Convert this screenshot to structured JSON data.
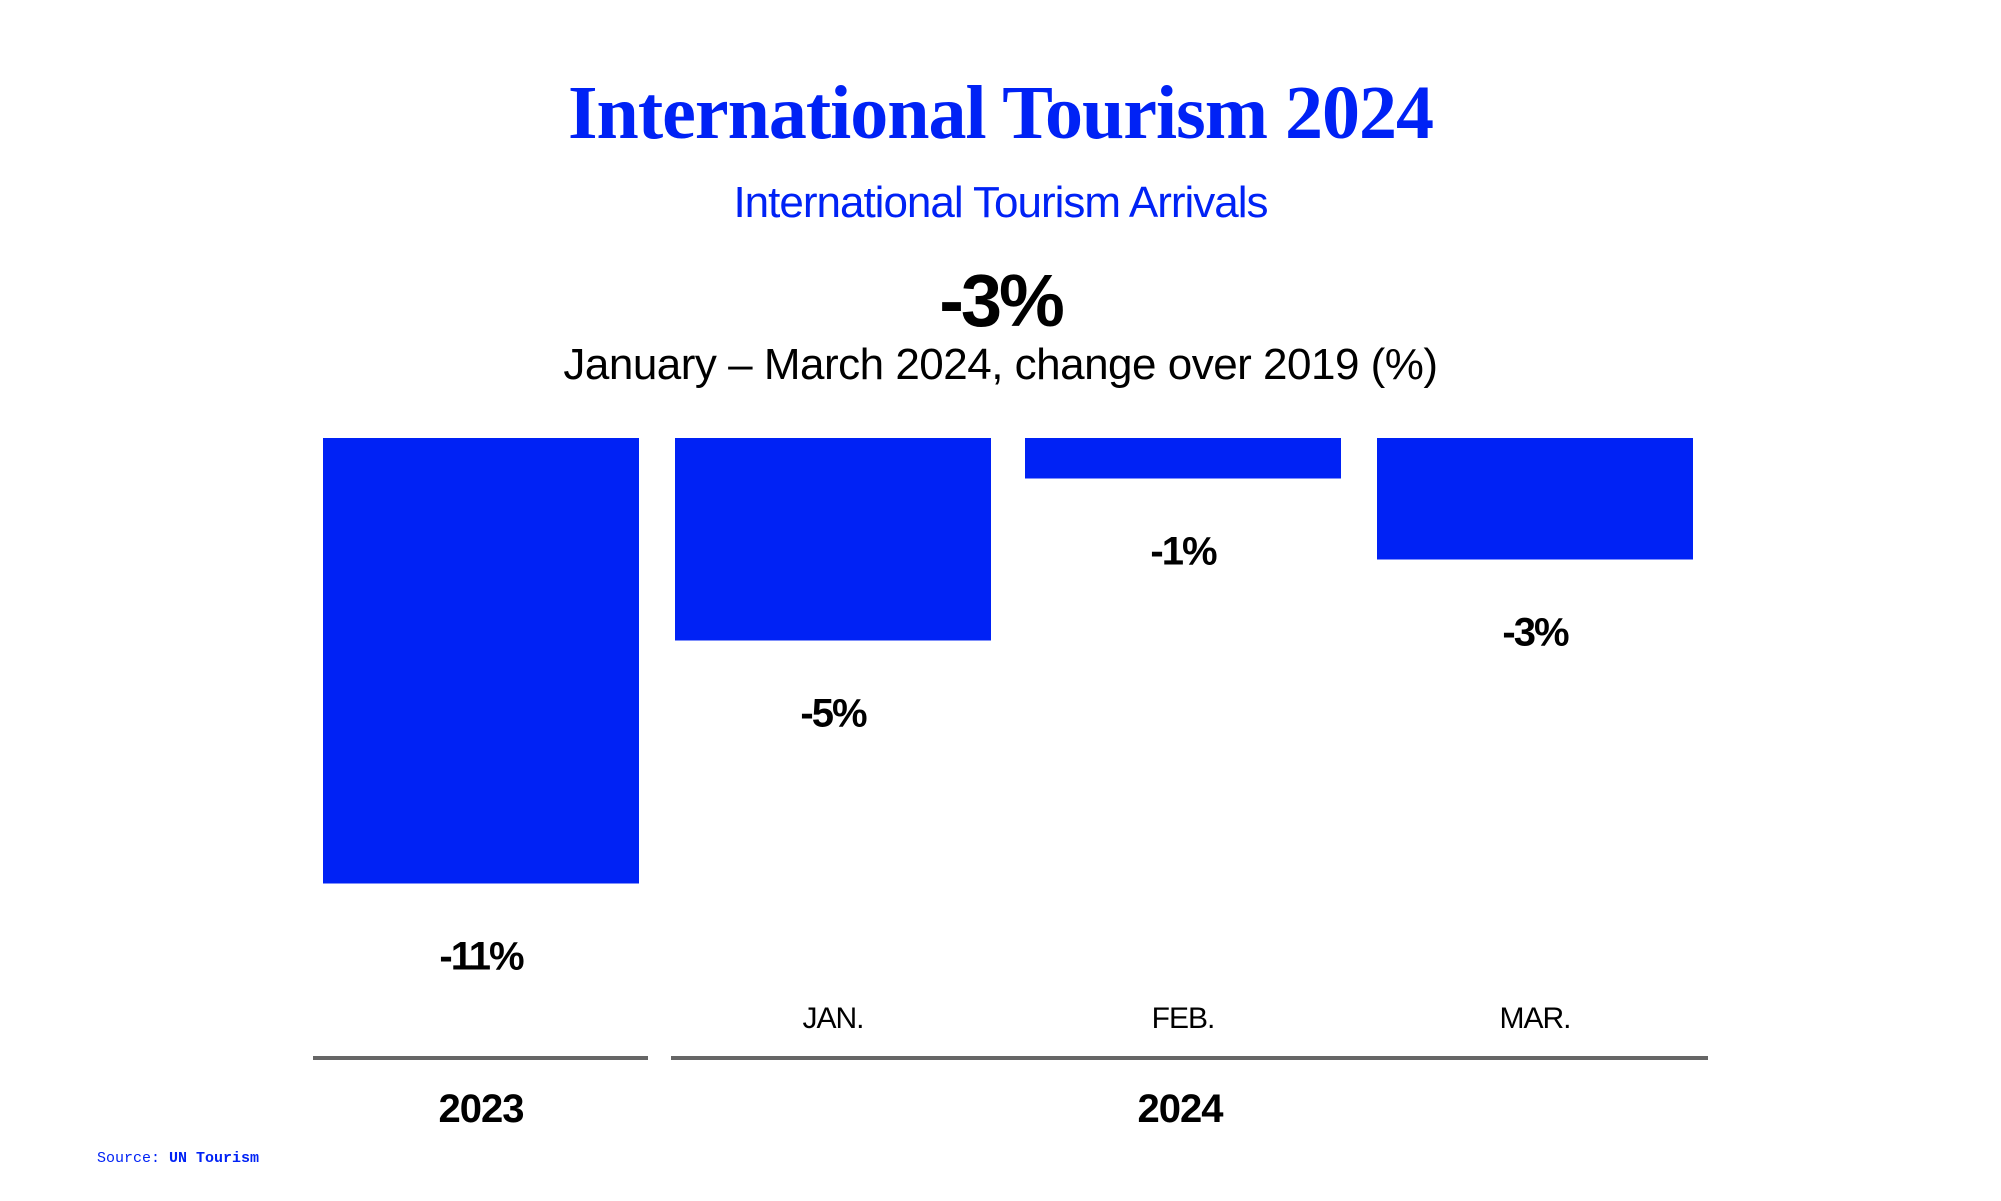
{
  "title": "International Tourism 2024",
  "subtitle": "International Tourism Arrivals",
  "headline_value": "-3%",
  "headline_caption": "January – March 2024, change over 2019 (%)",
  "source_label": "Source:",
  "source_name": "UN Tourism",
  "chart_data": {
    "type": "bar",
    "title": "International Tourism 2024",
    "subtitle": "January – March 2024, change over 2019 (%)",
    "categories": [
      "2023",
      "JAN.",
      "FEB.",
      "MAR."
    ],
    "values": [
      -11,
      -5,
      -1,
      -3
    ],
    "data_labels": [
      "-11%",
      "-5%",
      "-1%",
      "-3%"
    ],
    "groups": [
      {
        "label": "2023",
        "categories": [
          "2023"
        ]
      },
      {
        "label": "2024",
        "categories": [
          "JAN.",
          "FEB.",
          "MAR."
        ]
      }
    ],
    "category_labels_shown": [
      "",
      "JAN.",
      "FEB.",
      "MAR."
    ],
    "ylim": [
      -11,
      0
    ],
    "grid": false,
    "bar_color": "#0022f5",
    "label_color": "#000000",
    "group_line_color": "#666666"
  }
}
